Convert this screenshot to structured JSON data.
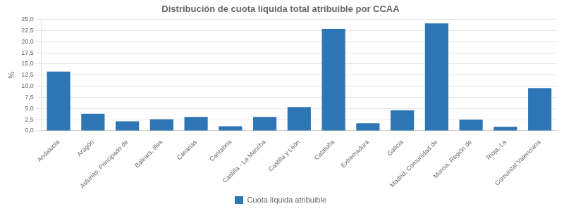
{
  "chart_data": {
    "type": "bar",
    "title": "Distribución de cuota líquida total atribuible por CCAA",
    "ylabel": "%",
    "categories": [
      "Andalucía",
      "Aragón",
      "Asturias, Principado de",
      "Balears, Illes",
      "Canarias",
      "Cantabria",
      "Castilla - La Mancha",
      "Castilla y León",
      "Cataluña",
      "Extremadura",
      "Galicia",
      "Madrid, Comunidad de",
      "Murcia, Región de",
      "Rioja, La",
      "Comunitat Valenciana"
    ],
    "series": [
      {
        "name": "Cuota líquida atribuible",
        "color": "#2e75b6",
        "values": [
          13.3,
          3.8,
          2.1,
          2.6,
          3.1,
          1.0,
          3.1,
          5.3,
          22.9,
          1.7,
          4.6,
          24.1,
          2.5,
          0.9,
          9.6
        ]
      }
    ],
    "ylim": [
      0,
      25
    ],
    "yticks": [
      {
        "value": 0.0,
        "label": "0,0"
      },
      {
        "value": 2.5,
        "label": "2,5"
      },
      {
        "value": 5.0,
        "label": "5,0"
      },
      {
        "value": 7.5,
        "label": "7,5"
      },
      {
        "value": 10.0,
        "label": "10,0"
      },
      {
        "value": 12.5,
        "label": "12,5"
      },
      {
        "value": 15.0,
        "label": "15,0"
      },
      {
        "value": 17.5,
        "label": "17,5"
      },
      {
        "value": 20.0,
        "label": "20,0"
      },
      {
        "value": 22.5,
        "label": "22,5"
      },
      {
        "value": 25.0,
        "label": "25,0"
      }
    ],
    "grid": true,
    "legend": "bottom"
  }
}
